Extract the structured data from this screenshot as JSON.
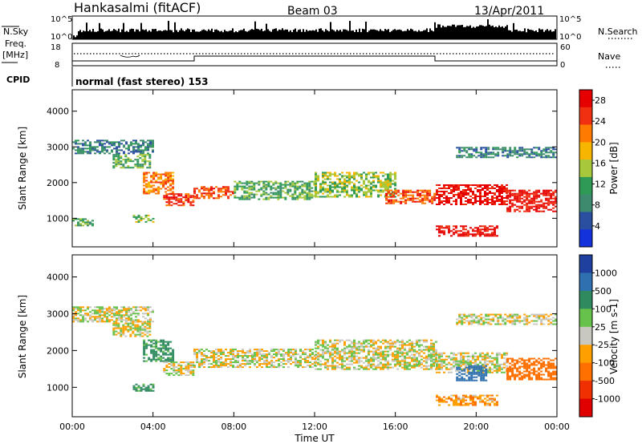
{
  "header": {
    "station": "Hankasalmi (fitACF)",
    "beam": "Beam 03",
    "date": "13/Apr/2011"
  },
  "top_panels": {
    "nsky_label": "N.Sky",
    "nsky_ticks": [
      "10^5",
      "10^0"
    ],
    "nsearch_label": "N.Search",
    "nsearch_ticks": [
      "10^5",
      "10^0"
    ],
    "freq_label": "Freq.",
    "freq_unit": "[MHz]",
    "freq_ticks": [
      "18",
      "8"
    ],
    "nave_label": "Nave",
    "nave_ticks": [
      "60",
      "0"
    ],
    "cpid_label": "CPID",
    "cpid_text": "normal (fast stereo) 153"
  },
  "colors": {
    "power": [
      "#1432dc",
      "#2a4fa0",
      "#3e8a6e",
      "#2f9a56",
      "#a6c83a",
      "#f7b500",
      "#ff7a00",
      "#f03010",
      "#e60000"
    ],
    "velocity": [
      "#2040a0",
      "#2e70b0",
      "#2f8a60",
      "#66c24a",
      "#c8c8c0",
      "#ffa000",
      "#ff7000",
      "#f03000",
      "#e00000"
    ]
  },
  "chart_data": [
    {
      "type": "heatmap",
      "ylabel": "Slant Range [km]",
      "xlabel": "Time UT",
      "x_ticks": [
        "00:00",
        "04:00",
        "08:00",
        "12:00",
        "16:00",
        "20:00",
        "00:00"
      ],
      "y_ticks": [
        "1000",
        "2000",
        "3000",
        "4000"
      ],
      "ylim": [
        200,
        4600
      ],
      "xlim": [
        0,
        24
      ],
      "colorbar": {
        "label": "Power [dB]",
        "ticks": [
          "28",
          "24",
          "20",
          "16",
          "12",
          "8",
          "4"
        ],
        "range": [
          0,
          30
        ]
      },
      "echo_bands": [
        {
          "t0": 0.0,
          "t1": 4.0,
          "r0": 2800,
          "r1": 3200,
          "value": 8
        },
        {
          "t0": 2.0,
          "t1": 3.8,
          "r0": 2400,
          "r1": 2800,
          "value": 12
        },
        {
          "t0": 3.5,
          "t1": 5.0,
          "r0": 1700,
          "r1": 2300,
          "value": 22
        },
        {
          "t0": 4.5,
          "t1": 6.0,
          "r0": 1350,
          "r1": 1700,
          "value": 26
        },
        {
          "t0": 6.0,
          "t1": 8.0,
          "r0": 1550,
          "r1": 1900,
          "value": 24
        },
        {
          "t0": 8.0,
          "t1": 12.0,
          "r0": 1550,
          "r1": 2050,
          "value": 12
        },
        {
          "t0": 12.0,
          "t1": 16.0,
          "r0": 1600,
          "r1": 2300,
          "value": 14
        },
        {
          "t0": 15.5,
          "t1": 18.0,
          "r0": 1400,
          "r1": 1800,
          "value": 24
        },
        {
          "t0": 18.0,
          "t1": 21.5,
          "r0": 1400,
          "r1": 1950,
          "value": 28
        },
        {
          "t0": 18.0,
          "t1": 21.0,
          "r0": 500,
          "r1": 800,
          "value": 28
        },
        {
          "t0": 21.5,
          "t1": 24.0,
          "r0": 1200,
          "r1": 1800,
          "value": 28
        },
        {
          "t0": 19.0,
          "t1": 24.0,
          "r0": 2700,
          "r1": 3000,
          "value": 8
        },
        {
          "t0": 0.0,
          "t1": 1.0,
          "r0": 800,
          "r1": 1000,
          "value": 12
        },
        {
          "t0": 3.0,
          "t1": 4.0,
          "r0": 900,
          "r1": 1100,
          "value": 14
        }
      ]
    },
    {
      "type": "heatmap",
      "ylabel": "Slant Range [km]",
      "xlabel": "Time UT",
      "x_ticks": [
        "00:00",
        "04:00",
        "08:00",
        "12:00",
        "16:00",
        "20:00",
        "00:00"
      ],
      "y_ticks": [
        "1000",
        "2000",
        "3000",
        "4000"
      ],
      "ylim": [
        200,
        4600
      ],
      "xlim": [
        0,
        24
      ],
      "colorbar": {
        "label": "Velocity [m s-1]",
        "ticks": [
          "1000",
          "500",
          "100",
          "25",
          "-25",
          "-100",
          "-500",
          "-1000"
        ],
        "range": [
          -1200,
          1200
        ]
      },
      "echo_bands": [
        {
          "t0": 0.0,
          "t1": 4.0,
          "r0": 2800,
          "r1": 3200,
          "value": 0
        },
        {
          "t0": 2.0,
          "t1": 3.8,
          "r0": 2400,
          "r1": 2800,
          "value": 0
        },
        {
          "t0": 3.5,
          "t1": 5.0,
          "r0": 1700,
          "r1": 2300,
          "value": 150
        },
        {
          "t0": 4.5,
          "t1": 6.0,
          "r0": 1350,
          "r1": 1700,
          "value": 0
        },
        {
          "t0": 6.0,
          "t1": 12.0,
          "r0": 1550,
          "r1": 2050,
          "value": 0
        },
        {
          "t0": 12.0,
          "t1": 18.0,
          "r0": 1500,
          "r1": 2300,
          "value": 0
        },
        {
          "t0": 18.0,
          "t1": 21.5,
          "r0": 1400,
          "r1": 1950,
          "value": 0
        },
        {
          "t0": 19.0,
          "t1": 20.5,
          "r0": 1200,
          "r1": 1600,
          "value": 600
        },
        {
          "t0": 21.5,
          "t1": 24.0,
          "r0": 1200,
          "r1": 1800,
          "value": -400
        },
        {
          "t0": 18.0,
          "t1": 21.0,
          "r0": 500,
          "r1": 800,
          "value": -80
        },
        {
          "t0": 19.0,
          "t1": 24.0,
          "r0": 2700,
          "r1": 3000,
          "value": 0
        },
        {
          "t0": 3.0,
          "t1": 4.0,
          "r0": 900,
          "r1": 1100,
          "value": 150
        }
      ]
    }
  ]
}
